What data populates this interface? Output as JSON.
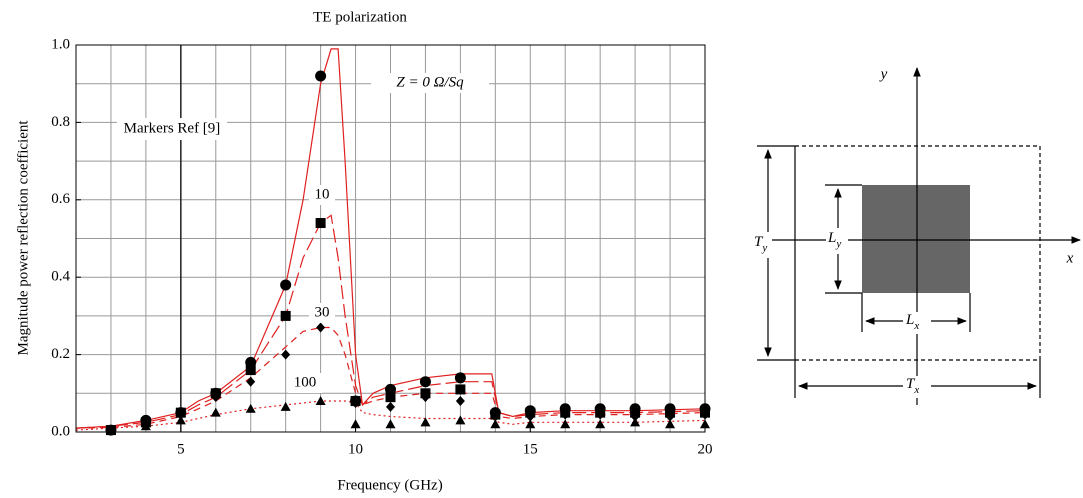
{
  "chart_data": {
    "type": "line",
    "title": "TE polarization",
    "xlabel": "Frequency (GHz)",
    "ylabel": "Magnitude power reflection coefficient",
    "xlim": [
      2,
      20
    ],
    "ylim": [
      0,
      1
    ],
    "xticks": [
      5,
      10,
      15,
      20
    ],
    "yticks": [
      {
        "value": 0,
        "label": "0.0"
      },
      0.2,
      0.4,
      0.6,
      0.8,
      {
        "value": 1,
        "label": "1.0"
      }
    ],
    "xgrid": [
      2,
      3,
      4,
      5,
      6,
      7,
      8,
      9,
      10,
      11,
      12,
      13,
      14,
      15,
      16,
      17,
      18,
      19,
      20
    ],
    "ygrid": [
      0,
      0.1,
      0.2,
      0.3,
      0.4,
      0.5,
      0.6,
      0.7,
      0.8,
      0.9,
      1
    ],
    "grid": true,
    "x": [
      2,
      3,
      4,
      5,
      5.5,
      6,
      7,
      8,
      8.5,
      9,
      9.3,
      9.5,
      9.7,
      10,
      10.2,
      10.5,
      11,
      12,
      13,
      13.9,
      14.1,
      14.5,
      15,
      16,
      18,
      20
    ],
    "series": [
      {
        "name": "Z = 0 Ω/Sq",
        "color": "#e02020",
        "dash": "solid",
        "values": [
          0.01,
          0.015,
          0.03,
          0.05,
          0.08,
          0.1,
          0.17,
          0.38,
          0.6,
          0.9,
          0.99,
          0.99,
          0.7,
          0.2,
          0.07,
          0.1,
          0.12,
          0.14,
          0.15,
          0.15,
          0.05,
          0.04,
          0.05,
          0.055,
          0.055,
          0.06
        ]
      },
      {
        "name": "10",
        "color": "#e02020",
        "dash": "longdash",
        "values": [
          0.01,
          0.015,
          0.025,
          0.045,
          0.07,
          0.09,
          0.16,
          0.3,
          0.45,
          0.54,
          0.56,
          0.45,
          0.3,
          0.12,
          0.07,
          0.09,
          0.1,
          0.12,
          0.13,
          0.13,
          0.05,
          0.04,
          0.045,
          0.05,
          0.05,
          0.055
        ]
      },
      {
        "name": "30",
        "color": "#e02020",
        "dash": "dash",
        "values": [
          0.01,
          0.012,
          0.02,
          0.04,
          0.06,
          0.08,
          0.14,
          0.22,
          0.26,
          0.27,
          0.27,
          0.25,
          0.2,
          0.1,
          0.07,
          0.08,
          0.09,
          0.1,
          0.1,
          0.1,
          0.04,
          0.035,
          0.04,
          0.045,
          0.045,
          0.05
        ]
      },
      {
        "name": "100",
        "color": "#e02020",
        "dash": "dot",
        "values": [
          0.005,
          0.01,
          0.015,
          0.025,
          0.035,
          0.045,
          0.06,
          0.07,
          0.075,
          0.08,
          0.08,
          0.08,
          0.08,
          0.075,
          0.05,
          0.045,
          0.04,
          0.035,
          0.035,
          0.035,
          0.025,
          0.02,
          0.025,
          0.025,
          0.025,
          0.03
        ]
      }
    ],
    "markers": {
      "x": [
        3,
        4,
        5,
        6,
        7,
        8,
        9,
        10,
        11,
        12,
        13,
        14,
        15,
        16,
        17,
        18,
        19,
        20
      ],
      "series": [
        {
          "marker": "circle",
          "color": "#000",
          "values": [
            0.005,
            0.03,
            0.05,
            0.1,
            0.18,
            0.38,
            0.92,
            0.08,
            0.11,
            0.13,
            0.14,
            0.05,
            0.055,
            0.06,
            0.06,
            0.06,
            0.06,
            0.06
          ]
        },
        {
          "marker": "square",
          "color": "#000",
          "values": [
            0.005,
            0.025,
            0.05,
            0.1,
            0.16,
            0.3,
            0.54,
            0.08,
            0.09,
            0.1,
            0.11,
            0.045,
            0.05,
            0.05,
            0.05,
            0.05,
            0.05,
            0.05
          ]
        },
        {
          "marker": "diamond",
          "color": "#000",
          "values": [
            0.005,
            0.02,
            0.05,
            0.09,
            0.13,
            0.2,
            0.27,
            0.075,
            0.065,
            0.09,
            0.08,
            0.04,
            0.04,
            0.045,
            0.045,
            0.04,
            0.04,
            0.045
          ]
        },
        {
          "marker": "triangle",
          "color": "#000",
          "values": [
            0.005,
            0.015,
            0.03,
            0.05,
            0.06,
            0.065,
            0.08,
            0.02,
            0.02,
            0.025,
            0.03,
            0.02,
            0.02,
            0.02,
            0.02,
            0.025,
            0.02,
            0.02
          ]
        }
      ]
    },
    "annotations": [
      {
        "text": "Markers Ref [9]"
      }
    ]
  },
  "diagram": {
    "y": "y",
    "x": "x",
    "Ty": {
      "main": "T",
      "sub": "y"
    },
    "Ly": {
      "main": "L",
      "sub": "y"
    },
    "Lx": {
      "main": "L",
      "sub": "x"
    },
    "Tx": {
      "main": "T",
      "sub": "x"
    }
  }
}
